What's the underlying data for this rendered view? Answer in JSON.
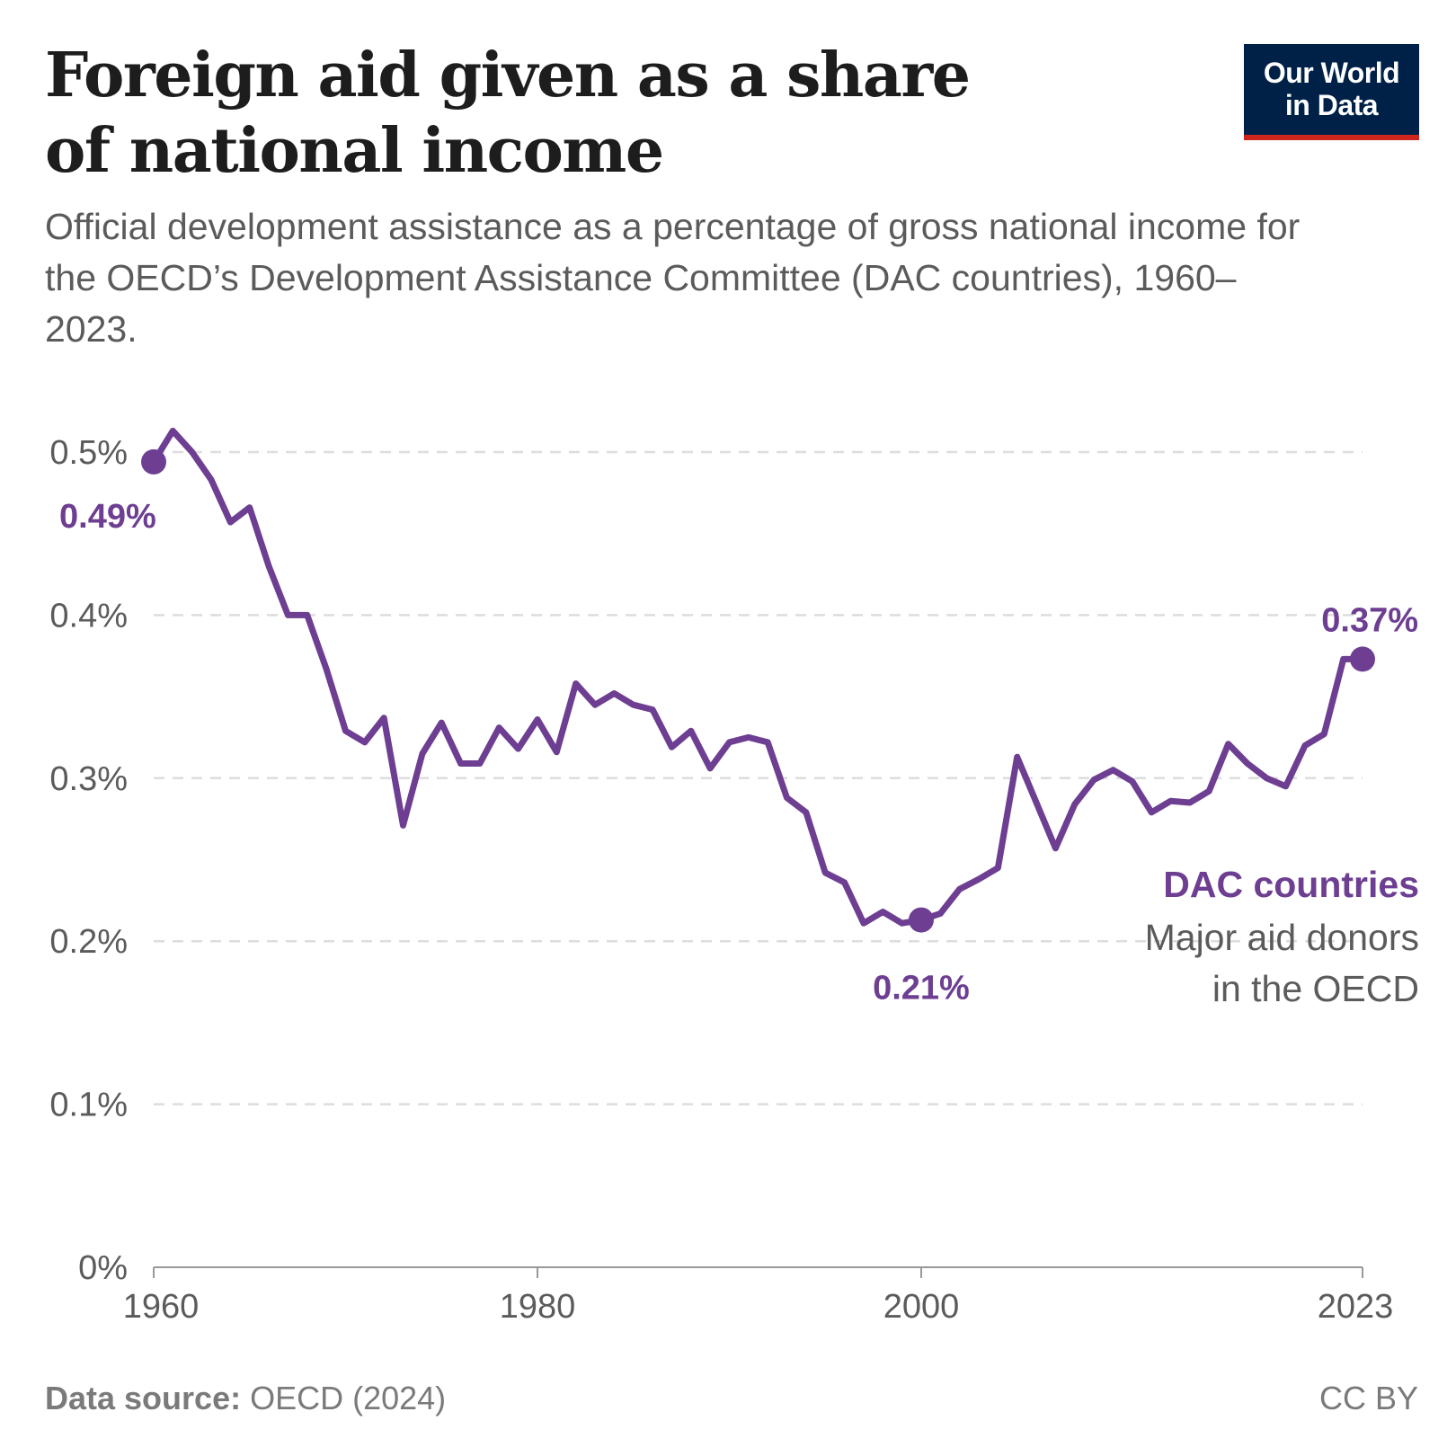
{
  "header": {
    "title": "Foreign aid given as a share of national income",
    "subtitle": "Official development assistance as a percentage of gross national income for the OECD’s Development Assistance Committee (DAC countries), 1960–2023.",
    "logo_line1": "Our World",
    "logo_line2": "in Data"
  },
  "footer": {
    "source_label": "Data source:",
    "source_value": "OECD (2024)",
    "license": "CC BY"
  },
  "colors": {
    "series": "#6d3e91",
    "grid": "#dddddd",
    "axis": "#999999"
  },
  "chart_data": {
    "type": "line",
    "title": "Foreign aid given as a share of national income",
    "xlabel": "",
    "ylabel": "",
    "ylim": [
      0,
      0.5
    ],
    "xlim": [
      1960,
      2023
    ],
    "grid": true,
    "yticks": [
      0,
      0.1,
      0.2,
      0.3,
      0.4,
      0.5
    ],
    "ytick_labels": [
      "0%",
      "0.1%",
      "0.2%",
      "0.3%",
      "0.4%",
      "0.5%"
    ],
    "xticks": [
      1960,
      1980,
      2000,
      2023
    ],
    "xtick_labels": [
      "1960",
      "1980",
      "2000",
      "2023"
    ],
    "series": [
      {
        "name": "DAC countries",
        "description": "Major aid donors in the OECD",
        "x": [
          1960,
          1961,
          1962,
          1963,
          1964,
          1965,
          1966,
          1967,
          1968,
          1969,
          1970,
          1971,
          1972,
          1973,
          1974,
          1975,
          1976,
          1977,
          1978,
          1979,
          1980,
          1981,
          1982,
          1983,
          1984,
          1985,
          1986,
          1987,
          1988,
          1989,
          1990,
          1991,
          1992,
          1993,
          1994,
          1995,
          1996,
          1997,
          1998,
          1999,
          2000,
          2001,
          2002,
          2003,
          2004,
          2005,
          2006,
          2007,
          2008,
          2009,
          2010,
          2011,
          2012,
          2013,
          2014,
          2015,
          2016,
          2017,
          2018,
          2019,
          2020,
          2021,
          2022,
          2023
        ],
        "values": [
          0.494,
          0.513,
          0.5,
          0.483,
          0.457,
          0.466,
          0.43,
          0.4,
          0.4,
          0.367,
          0.329,
          0.322,
          0.337,
          0.271,
          0.315,
          0.334,
          0.309,
          0.309,
          0.331,
          0.318,
          0.336,
          0.316,
          0.358,
          0.345,
          0.352,
          0.345,
          0.342,
          0.319,
          0.329,
          0.306,
          0.322,
          0.325,
          0.322,
          0.288,
          0.279,
          0.242,
          0.236,
          0.211,
          0.218,
          0.211,
          0.213,
          0.217,
          0.232,
          0.238,
          0.245,
          0.313,
          0.285,
          0.257,
          0.284,
          0.299,
          0.305,
          0.298,
          0.279,
          0.286,
          0.285,
          0.292,
          0.321,
          0.309,
          0.3,
          0.295,
          0.32,
          0.327,
          0.373,
          0.373
        ]
      }
    ],
    "annotations": [
      {
        "year": 1960,
        "text": "0.49%"
      },
      {
        "year": 2000,
        "text": "0.21%"
      },
      {
        "year": 2023,
        "text": "0.37%"
      }
    ],
    "legend": {
      "name": "DAC countries",
      "line2": "Major aid donors",
      "line3": "in the OECD",
      "placement": "right"
    }
  }
}
